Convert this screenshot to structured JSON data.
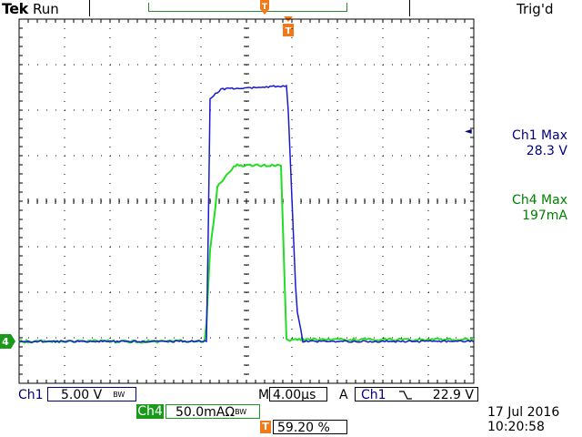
{
  "header": {
    "brand": "Tek",
    "run_state": "Run",
    "trigger_state": "Trig'd"
  },
  "markers": {
    "ground_ch4": "4",
    "trigger_pos": "T",
    "trigger_level_arrow": "◄"
  },
  "measurements": {
    "ch1_label": "Ch1 Max",
    "ch1_value": "28.3 V",
    "ch4_label": "Ch4 Max",
    "ch4_value": "197mA"
  },
  "status": {
    "ch1": "Ch1",
    "ch1_scale": "5.00 V",
    "ch1_bw": "BW",
    "timebase_prefix": "M",
    "timebase": "4.00µs",
    "trigger_mode": "A",
    "trigger_source": "Ch1",
    "trigger_slope": "≀",
    "trigger_level": "22.9 V",
    "ch4": "Ch4",
    "ch4_scale": "50.0mAΩ",
    "ch4_bw": "BW",
    "trigger_position_label": "T",
    "trigger_position": "59.20 %",
    "date": "17 Jul  2016",
    "time": "10:20:58"
  },
  "colors": {
    "ch1": "#1a1acc",
    "ch4": "#22dd22",
    "trigger": "#f07a1a",
    "grid": "#000000"
  }
}
